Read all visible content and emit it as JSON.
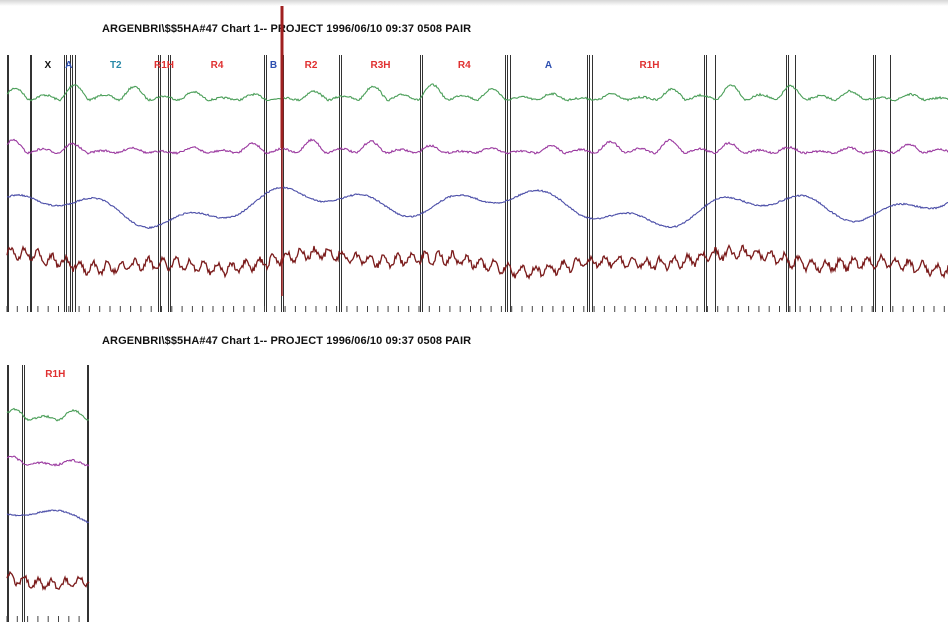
{
  "colors": {
    "black": "#111111",
    "blue": "#2d4fb0",
    "teal": "#2a8aa8",
    "red": "#e03030",
    "trace_green": "#4a9e58",
    "trace_purple": "#9b3aa0",
    "trace_blue": "#4b4ea8",
    "trace_darkred": "#7a1a1a",
    "marker_red": "#a02020",
    "divider": "#333333",
    "tick": "#444444"
  },
  "chart_data": [
    {
      "type": "line",
      "title": "ARGENBRI\\$$5HA#47 Chart 1-- PROJECT 1996/06/10 09:37 0508 PAIR",
      "segments": [
        {
          "label": "X",
          "color": "black"
        },
        {
          "label": "A",
          "color": "blue"
        },
        {
          "label": "T2",
          "color": "teal"
        },
        {
          "label": "R1H",
          "color": "red"
        },
        {
          "label": "R4",
          "color": "red"
        },
        {
          "label": "B",
          "color": "blue"
        },
        {
          "label": "R2",
          "color": "red"
        },
        {
          "label": "R3H",
          "color": "red"
        },
        {
          "label": "R4",
          "color": "red"
        },
        {
          "label": "A",
          "color": "blue"
        },
        {
          "label": "R1H",
          "color": "red"
        }
      ],
      "series": [
        {
          "color": "trace_green",
          "style": "respiration"
        },
        {
          "color": "trace_purple",
          "style": "respiration"
        },
        {
          "color": "trace_blue",
          "style": "slow"
        },
        {
          "color": "trace_darkred",
          "style": "cardio"
        }
      ]
    },
    {
      "type": "line",
      "title": "ARGENBRI\\$$5HA#47 Chart 1-- PROJECT 1996/06/10 09:37 0508 PAIR",
      "segments": [
        {
          "label": "R1H",
          "color": "red"
        }
      ],
      "series": [
        {
          "color": "trace_green",
          "style": "respiration"
        },
        {
          "color": "trace_purple",
          "style": "respiration"
        },
        {
          "color": "trace_blue",
          "style": "slow"
        },
        {
          "color": "trace_darkred",
          "style": "cardio"
        }
      ]
    }
  ]
}
